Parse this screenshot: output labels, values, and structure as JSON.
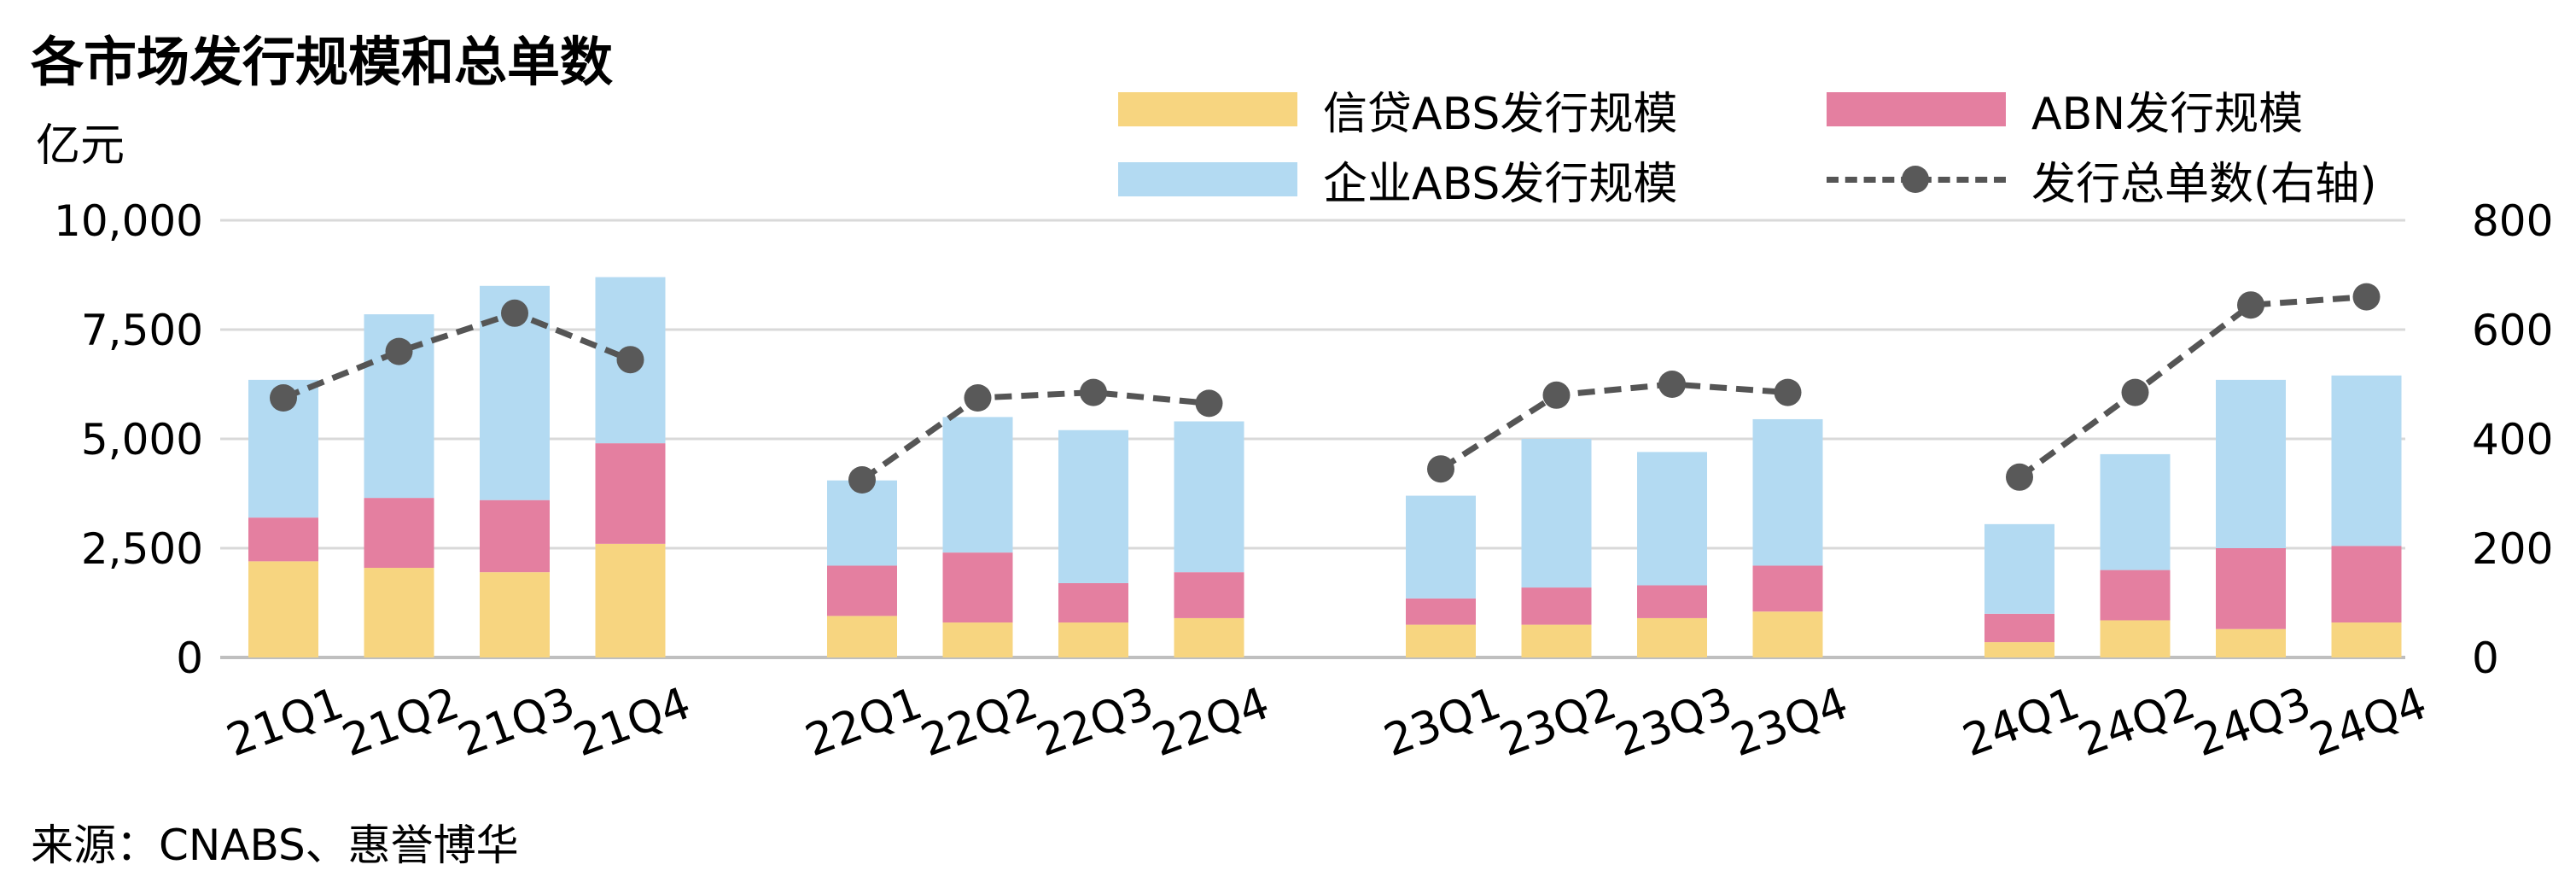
{
  "title": "各市场发行规模和总单数",
  "unit_label": "亿元",
  "source": "来源：CNABS、惠誉博华",
  "colors": {
    "credit_abs": "#F7D580",
    "abn": "#E47FA0",
    "corp_abs": "#B3DAF2",
    "line": "#555555",
    "marker": "#595959",
    "grid": "#D9D9D9"
  },
  "chart_data": {
    "type": "bar",
    "stacked": true,
    "title": "各市场发行规模和总单数",
    "ylabel": "亿元",
    "ylim": [
      0,
      10000
    ],
    "y_ticks": [
      "0",
      "2,500",
      "5,000",
      "7,500",
      "10,000"
    ],
    "y_tick_values": [
      0,
      2500,
      5000,
      7500,
      10000
    ],
    "y2lim": [
      0,
      800
    ],
    "y2_ticks": [
      "0",
      "200",
      "400",
      "600",
      "800"
    ],
    "y2_tick_values": [
      0,
      200,
      400,
      600,
      800
    ],
    "grid": true,
    "legend_position": "top-right",
    "categories": [
      "21Q1",
      "21Q2",
      "21Q3",
      "21Q4",
      "22Q1",
      "22Q2",
      "22Q3",
      "22Q4",
      "23Q1",
      "23Q2",
      "23Q3",
      "23Q4",
      "24Q1",
      "24Q2",
      "24Q3",
      "24Q4"
    ],
    "series": [
      {
        "name": "信贷ABS发行规模",
        "axis": "left",
        "kind": "bar",
        "values": [
          2200,
          2050,
          1950,
          2600,
          950,
          800,
          800,
          900,
          750,
          750,
          900,
          1050,
          350,
          850,
          650,
          800
        ]
      },
      {
        "name": "ABN发行规模",
        "axis": "left",
        "kind": "bar",
        "values": [
          1000,
          1600,
          1650,
          2300,
          1150,
          1600,
          900,
          1050,
          600,
          850,
          750,
          1050,
          650,
          1150,
          1850,
          1750
        ]
      },
      {
        "name": "企业ABS发行规模",
        "axis": "left",
        "kind": "bar",
        "values": [
          3150,
          4200,
          4900,
          3800,
          1950,
          3100,
          3500,
          3450,
          2350,
          3400,
          3050,
          3350,
          2050,
          2650,
          3850,
          3900
        ]
      },
      {
        "name": "发行总单数(右轴)",
        "axis": "right",
        "kind": "line",
        "values": [
          475,
          560,
          630,
          545,
          325,
          475,
          485,
          465,
          345,
          480,
          500,
          485,
          330,
          485,
          645,
          660
        ]
      }
    ]
  }
}
